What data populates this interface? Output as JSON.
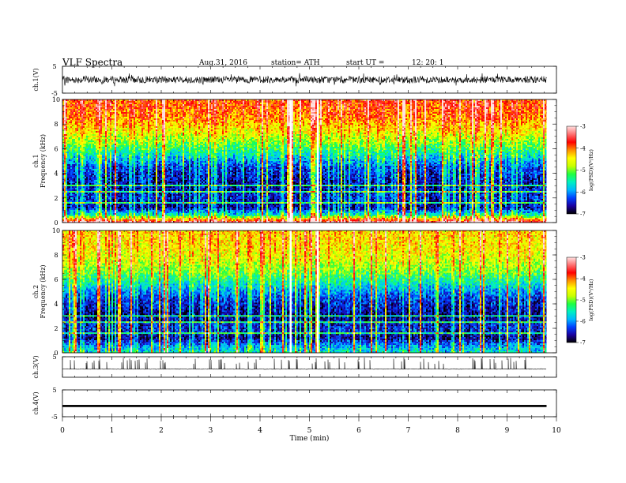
{
  "header": {
    "title": "VLF  Spectra",
    "date": "Aug.31, 2016",
    "station": "station= ATH",
    "start_label": "start  UT  =",
    "start_time": "12: 20: 1"
  },
  "chart_data": [
    {
      "type": "line",
      "panel": "ch1-waveform",
      "ylabel": "ch.1(V)",
      "ylim": [
        -5,
        5
      ],
      "yticks": [
        "5",
        "-5"
      ],
      "note": "dense broadband waveform, amplitude mostly within about -1.8 to 1.8 V"
    },
    {
      "type": "heatmap",
      "panel": "ch1-spectrogram",
      "ylabel_lines": [
        "ch.1",
        "Frequency  (kHz)"
      ],
      "xlim": [
        0,
        10
      ],
      "ylim": [
        0,
        10
      ],
      "yticks": [
        "0",
        "2",
        "4",
        "6",
        "8",
        "10"
      ],
      "data_end_min": 9.8,
      "color_scale": {
        "label": "log(PSD)(V²/Hz)",
        "range": [
          -7,
          -3
        ],
        "ticks": [
          "-3",
          "-4",
          "-5",
          "-6",
          "-7"
        ],
        "colors": [
          "#000000",
          "#1a00a0",
          "#0040ff",
          "#00b8ff",
          "#00f0c0",
          "#20ff40",
          "#c8ff00",
          "#ffff00",
          "#ff9000",
          "#ff0000",
          "#ff7070",
          "#ffe0e0"
        ]
      },
      "frequency_profile_kHz_to_logPSD": [
        [
          0.0,
          -3.2
        ],
        [
          0.6,
          -5.5
        ],
        [
          1.2,
          -6.6
        ],
        [
          2.0,
          -6.4
        ],
        [
          3.0,
          -6.6
        ],
        [
          4.5,
          -6.3
        ],
        [
          5.5,
          -5.6
        ],
        [
          6.5,
          -5.0
        ],
        [
          7.5,
          -4.5
        ],
        [
          8.5,
          -4.1
        ],
        [
          9.5,
          -3.9
        ],
        [
          10.0,
          -3.9
        ]
      ]
    },
    {
      "type": "heatmap",
      "panel": "ch2-spectrogram",
      "ylabel_lines": [
        "ch.2",
        "Frequency  (kHz)"
      ],
      "xlim": [
        0,
        10
      ],
      "ylim": [
        0,
        10
      ],
      "yticks": [
        "0",
        "2",
        "4",
        "6",
        "8",
        "10"
      ],
      "data_end_min": 9.8,
      "color_scale": {
        "label": "log(PSD)(V²/Hz)",
        "range": [
          -7,
          -3
        ],
        "ticks": [
          "-3",
          "-4",
          "-5",
          "-6",
          "-7"
        ],
        "colors": [
          "#000000",
          "#1a00a0",
          "#0040ff",
          "#00b8ff",
          "#00f0c0",
          "#20ff40",
          "#c8ff00",
          "#ffff00",
          "#ff9000",
          "#ff0000",
          "#ff7070",
          "#ffe0e0"
        ]
      },
      "frequency_profile_kHz_to_logPSD": [
        [
          0.0,
          -5.6
        ],
        [
          0.6,
          -6.0
        ],
        [
          1.2,
          -6.7
        ],
        [
          2.0,
          -6.4
        ],
        [
          3.0,
          -6.7
        ],
        [
          4.5,
          -6.3
        ],
        [
          5.5,
          -5.7
        ],
        [
          6.5,
          -5.1
        ],
        [
          7.5,
          -4.7
        ],
        [
          8.5,
          -4.5
        ],
        [
          9.5,
          -4.4
        ],
        [
          10.0,
          -4.4
        ]
      ]
    },
    {
      "type": "line",
      "panel": "ch3-waveform",
      "ylabel": "ch.3(V)",
      "ylim": [
        -5,
        5
      ],
      "yticks": [
        "5"
      ],
      "note": "baseline near -1 V with frequent short positive spikes up to about 4 V"
    },
    {
      "type": "line",
      "panel": "ch4-waveform",
      "ylabel": "ch.4(V)",
      "ylim": [
        -5,
        5
      ],
      "yticks": [
        "5",
        "-5"
      ],
      "note": "nearly constant thick trace at about -1 V"
    }
  ],
  "x_axis": {
    "label": "Time  (min)",
    "ticks": [
      "0",
      "1",
      "2",
      "3",
      "4",
      "5",
      "6",
      "7",
      "8",
      "9",
      "10"
    ],
    "range": [
      0,
      10
    ]
  }
}
